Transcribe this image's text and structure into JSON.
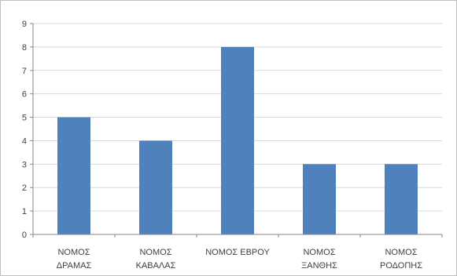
{
  "chart_data": {
    "type": "bar",
    "categories": [
      [
        "ΝΟΜΟΣ",
        "ΔΡΑΜΑΣ"
      ],
      [
        "ΝΟΜΟΣ",
        "ΚΑΒΑΛΑΣ"
      ],
      [
        "ΝΟΜΟΣ ΕΒΡΟΥ"
      ],
      [
        "ΝΟΜΟΣ",
        "ΞΑΝΘΗΣ"
      ],
      [
        "ΝΟΜΟΣ",
        "ΡΟΔΟΠΗΣ"
      ]
    ],
    "values": [
      5,
      4,
      8,
      3,
      3
    ],
    "yticks": [
      "0",
      "1",
      "2",
      "3",
      "4",
      "5",
      "6",
      "7",
      "8",
      "9"
    ],
    "ylim": [
      0,
      9
    ],
    "grid": true,
    "legend": "none",
    "colors": {
      "bar": "#4f81bd",
      "grid": "#d9d9d9",
      "axis": "#868686"
    }
  }
}
